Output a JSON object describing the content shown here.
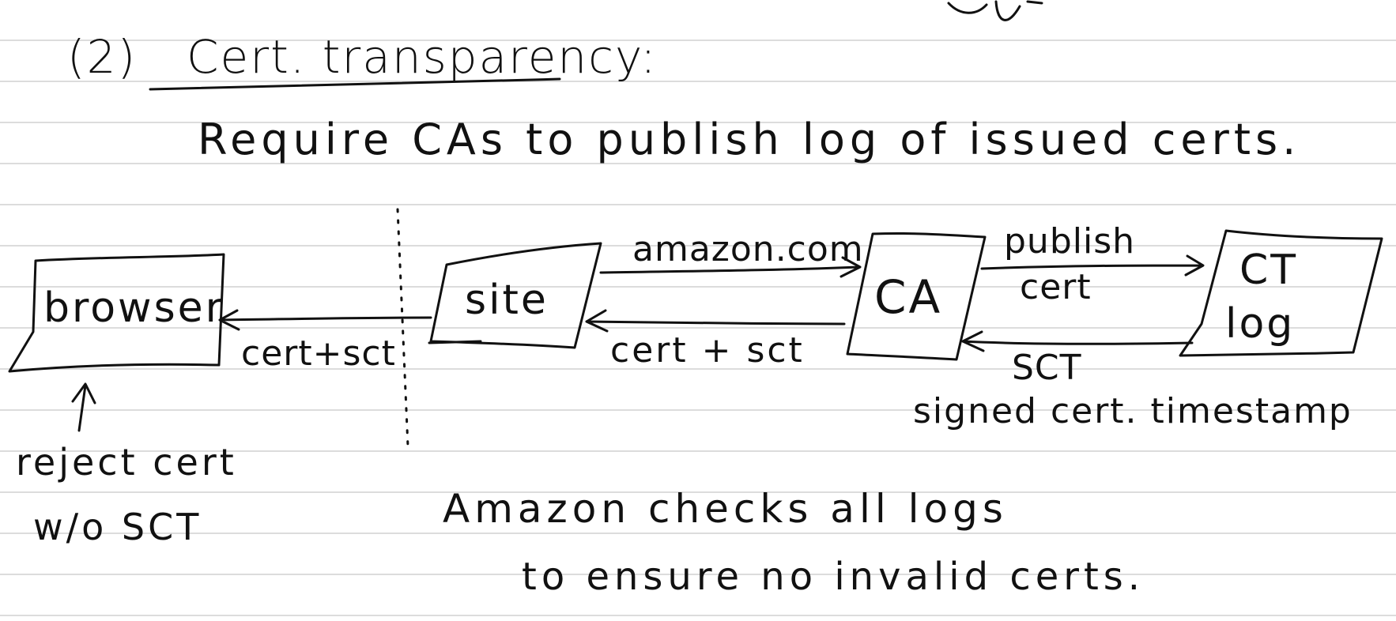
{
  "heading": {
    "number": "(2)",
    "title": "Cert. transparency:"
  },
  "subtitle": "Require CAs to publish log of issued certs.",
  "nodes": {
    "browser": "browser",
    "site": "site",
    "ca": "CA",
    "ct_log_line1": "CT",
    "ct_log_line2": "log"
  },
  "edges": {
    "site_to_ca": "amazon.com",
    "ca_to_site": "cert + sct",
    "site_to_browser": "cert+sct",
    "ca_to_log_line1": "publish",
    "ca_to_log_line2": "cert",
    "log_to_ca": "SCT"
  },
  "notes": {
    "sct_definition": "signed cert. timestamp",
    "reject_line1": "reject cert",
    "reject_line2": "w/o SCT",
    "amazon_line1": "Amazon checks all logs",
    "amazon_line2": "to ensure no invalid certs."
  }
}
